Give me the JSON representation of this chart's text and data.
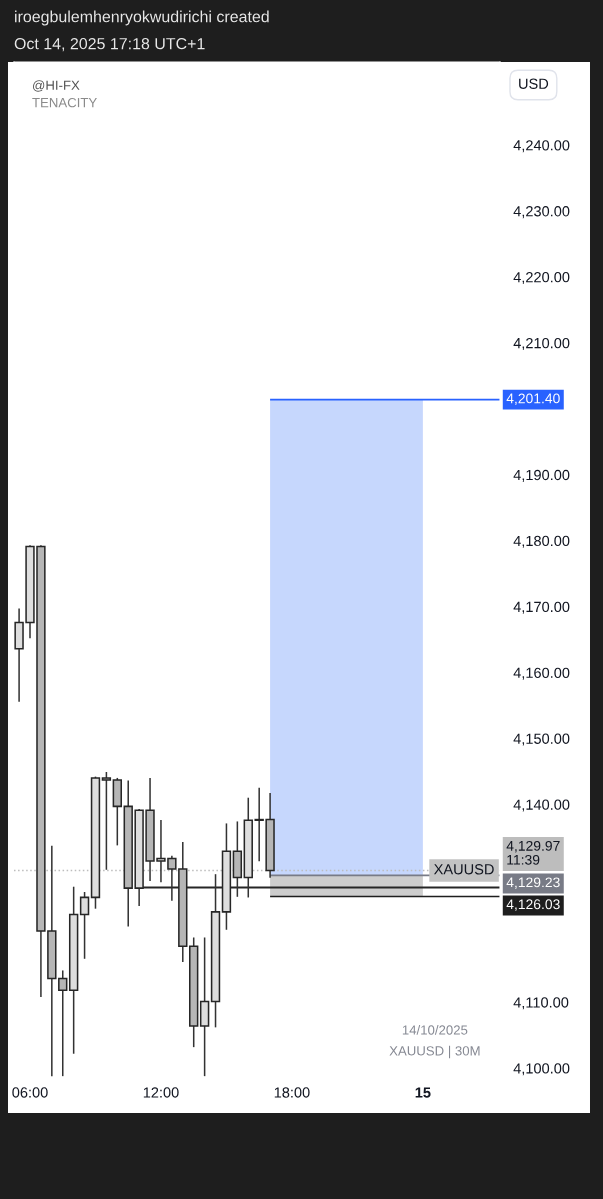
{
  "chart_data": {
    "type": "candlestick",
    "title": "iroegbulemhenryokwudirichi created",
    "subtitle": "Oct 14, 2025 17:18 UTC+1",
    "ylabel": "USD",
    "x": [
      "2025-10-14T05:30",
      "2025-10-14T06:00",
      "2025-10-14T06:30",
      "2025-10-14T07:00",
      "2025-10-14T07:30",
      "2025-10-14T08:00",
      "2025-10-14T08:30",
      "2025-10-14T09:00",
      "2025-10-14T09:30",
      "2025-10-14T10:00",
      "2025-10-14T10:30",
      "2025-10-14T11:00",
      "2025-10-14T11:30",
      "2025-10-14T12:00",
      "2025-10-14T12:30",
      "2025-10-14T13:00",
      "2025-10-14T13:30",
      "2025-10-14T14:00",
      "2025-10-14T14:30",
      "2025-10-14T15:00",
      "2025-10-14T15:30",
      "2025-10-14T16:00",
      "2025-10-14T16:30",
      "2025-10-14T17:00"
    ],
    "ohlc": [
      [
        4163.6,
        4169.6,
        4155.7,
        4167.6
      ],
      [
        4167.6,
        4179.2,
        4165.3,
        4179.1
      ],
      [
        4179.1,
        4179.2,
        4110.9,
        4120.8
      ],
      [
        4120.8,
        4133.6,
        4098.9,
        4113.6
      ],
      [
        4113.6,
        4114.7,
        4098.9,
        4111.8
      ],
      [
        4111.8,
        4127.4,
        4102.3,
        4123.3
      ],
      [
        4123.3,
        4126.6,
        4116.7,
        4125.9
      ],
      [
        4125.9,
        4144.1,
        4124.3,
        4144.0
      ],
      [
        4144.0,
        4144.8,
        4130.2,
        4143.7
      ],
      [
        4143.7,
        4143.9,
        4133.9,
        4139.7
      ],
      [
        4139.7,
        4143.5,
        4121.6,
        4127.3
      ],
      [
        4127.3,
        4139.2,
        4124.7,
        4139.1
      ],
      [
        4139.1,
        4143.9,
        4128.5,
        4131.4
      ],
      [
        4131.4,
        4137.5,
        4128.3,
        4131.8
      ],
      [
        4131.8,
        4132.1,
        4125.5,
        4130.2
      ],
      [
        4130.2,
        4134.2,
        4116.2,
        4118.5
      ],
      [
        4118.5,
        4119.7,
        4103.3,
        4106.4
      ],
      [
        4106.4,
        4119.7,
        4098.9,
        4110.1
      ],
      [
        4110.1,
        4129.3,
        4106.3,
        4123.7
      ],
      [
        4123.7,
        4137.0,
        4121.1,
        4132.9
      ],
      [
        4132.9,
        4137.3,
        4126.1,
        4128.9
      ],
      [
        4128.9,
        4140.9,
        4126.0,
        4137.6
      ],
      [
        4137.6,
        4142.4,
        4131.5,
        4137.7
      ],
      [
        4137.7,
        4141.6,
        4129.0,
        4129.97
      ]
    ],
    "colors": [
      "#dedede",
      "#dedede",
      "#b6b6b6",
      "#b6b6b6",
      "#b6b6b6",
      "#dedede",
      "#dedede",
      "#dedede",
      "#b6b6b6",
      "#b6b6b6",
      "#b6b6b6",
      "#dedede",
      "#b6b6b6",
      "#dedede",
      "#b6b6b6",
      "#b6b6b6",
      "#b6b6b6",
      "#dedede",
      "#dedede",
      "#dedede",
      "#b6b6b6",
      "#dedede",
      "#dedede",
      "#b6b6b6"
    ],
    "series": [
      {
        "type": "line",
        "x": [
          "2025-10-14T11:00",
          "2025-10-15T03:32"
        ],
        "values": [
          4127.4,
          4127.4
        ],
        "color": "#262626"
      },
      {
        "type": "line",
        "x": [
          "2025-10-14T17:00",
          "2025-10-15T00:00"
        ],
        "values": [
          null,
          null
        ],
        "lower": [
          4129.23,
          4129.23
        ],
        "upper": [
          4201.4,
          4201.4
        ],
        "color": "#c6d7fd"
      },
      {
        "type": "line",
        "x": [
          "2025-10-14T17:00",
          "2025-10-15T00:00"
        ],
        "values": [
          null,
          null
        ],
        "lower": [
          4126.03,
          4126.03
        ],
        "upper": [
          4129.23,
          4129.23
        ],
        "color": "#cdcdcd"
      }
    ],
    "xlim": [
      "2025-10-14T05:16",
      "2025-10-15T03:32"
    ],
    "xticks": [
      {
        "value": "2025-10-14T06:00",
        "label": "06:00"
      },
      {
        "value": "2025-10-14T12:00",
        "label": "12:00"
      },
      {
        "value": "2025-10-14T18:00",
        "label": "18:00"
      },
      {
        "value": "2025-10-15",
        "label": "15"
      }
    ],
    "ylim": [
      4098.2,
      4252.6
    ],
    "yticks": [
      {
        "value": 4100,
        "label": "4,100.00"
      },
      {
        "value": 4110,
        "label": "4,110.00"
      },
      {
        "value": 4140,
        "label": "4,140.00"
      },
      {
        "value": 4150,
        "label": "4,150.00"
      },
      {
        "value": 4160,
        "label": "4,160.00"
      },
      {
        "value": 4170,
        "label": "4,170.00"
      },
      {
        "value": 4180,
        "label": "4,180.00"
      },
      {
        "value": 4190,
        "label": "4,190.00"
      },
      {
        "value": 4210,
        "label": "4,210.00"
      },
      {
        "value": 4220,
        "label": "4,220.00"
      },
      {
        "value": 4230,
        "label": "4,230.00"
      },
      {
        "value": 4240,
        "label": "4,240.00"
      }
    ],
    "ref_lines": [
      {
        "axis": "y",
        "value": 4201.4,
        "label": "4,201.40",
        "color": "#2962ff",
        "line_style": "solid"
      },
      {
        "axis": "y",
        "value": 4129.97,
        "label": "4,129.97\n11:39",
        "color": "#bdbdbd",
        "line_style": "dotted"
      },
      {
        "axis": "y",
        "value": 4129.23,
        "label": "4,129.23",
        "color": "#787b86",
        "line_style": "solid"
      },
      {
        "axis": "y",
        "value": 4126.03,
        "label": "4,126.03",
        "color": "#1e1e1e",
        "line_style": "solid"
      }
    ],
    "annotations": [
      "@HI-FX",
      "TENACITY",
      "14/10/2025",
      "XAUUSD | 30M",
      "XAUUSD"
    ]
  }
}
